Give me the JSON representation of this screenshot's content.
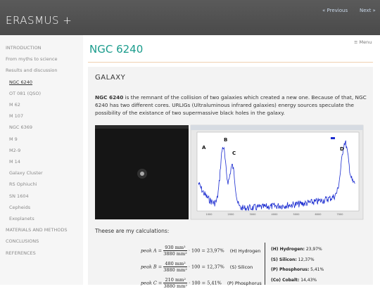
{
  "header": {
    "site_title": "ERASMUS +",
    "prev": "« Previous",
    "next": "Next »"
  },
  "sidebar": {
    "active": 3,
    "items": [
      {
        "label": "INTRODUCTION",
        "sub": false
      },
      {
        "label": "From myths to science",
        "sub": false
      },
      {
        "label": "Results and discussion",
        "sub": false
      },
      {
        "label": "NGC 6240",
        "sub": true
      },
      {
        "label": "OT 081 (QSO)",
        "sub": true
      },
      {
        "label": "M 62",
        "sub": true
      },
      {
        "label": "M 107",
        "sub": true
      },
      {
        "label": "NGC 6369",
        "sub": true
      },
      {
        "label": "M 9",
        "sub": true
      },
      {
        "label": "M2-9",
        "sub": true
      },
      {
        "label": "M 14",
        "sub": true
      },
      {
        "label": "Galaxy Cluster",
        "sub": true
      },
      {
        "label": "RS Ophiuchi",
        "sub": true
      },
      {
        "label": "SN 1604",
        "sub": true
      },
      {
        "label": "Cepheids",
        "sub": true
      },
      {
        "label": "Exoplanets",
        "sub": true
      },
      {
        "label": "MATERIALS AND METHODS",
        "sub": false
      },
      {
        "label": "CONCLUSIONS",
        "sub": false
      },
      {
        "label": "REFERENCES",
        "sub": false
      }
    ]
  },
  "page": {
    "title": "NGC 6240",
    "menu": "≡ Menu",
    "section": "GALAXY",
    "paragraph_lead": "NGC 6240",
    "paragraph": " is the remnant of the collision of two galaxies which created a new one. Because of that, NGC 6240 has two different cores. URLIGs (Ultraluminous infrared galaxies) energy sources speculate the possibility of the existance of two supermassive black holes in the galaxy.",
    "graph": {
      "peaks": [
        "A",
        "B",
        "C",
        "D"
      ],
      "xticks": [
        "1000",
        "2000",
        "3000",
        "4000",
        "5000",
        "6000",
        "7000"
      ]
    },
    "calc_intro": "Theese are my calculations:",
    "formulas": [
      {
        "peak": "peak A =",
        "num": "930 mm²",
        "den": "3880 mm²",
        "rest": "· 100 = 23,97%",
        "element": "(H) Hydrogen"
      },
      {
        "peak": "peak B =",
        "num": "480 mm²",
        "den": "3880 mm²",
        "rest": "· 100 = 12,37%",
        "element": "(S) Silicon"
      },
      {
        "peak": "peak C =",
        "num": "210 mm²",
        "den": "3880 mm²",
        "rest": "· 100 = 5,41%",
        "element": "(P) Phosphorus"
      }
    ],
    "results": [
      {
        "element": "(H) Hydrogen:",
        "value": " 23,97%"
      },
      {
        "element": "(S) Silicon:",
        "value": " 12,37%"
      },
      {
        "element": "(P) Phosphorus:",
        "value": " 5,41%"
      },
      {
        "element": "(Co) Cobalt:",
        "value": " 14,43%"
      }
    ]
  }
}
